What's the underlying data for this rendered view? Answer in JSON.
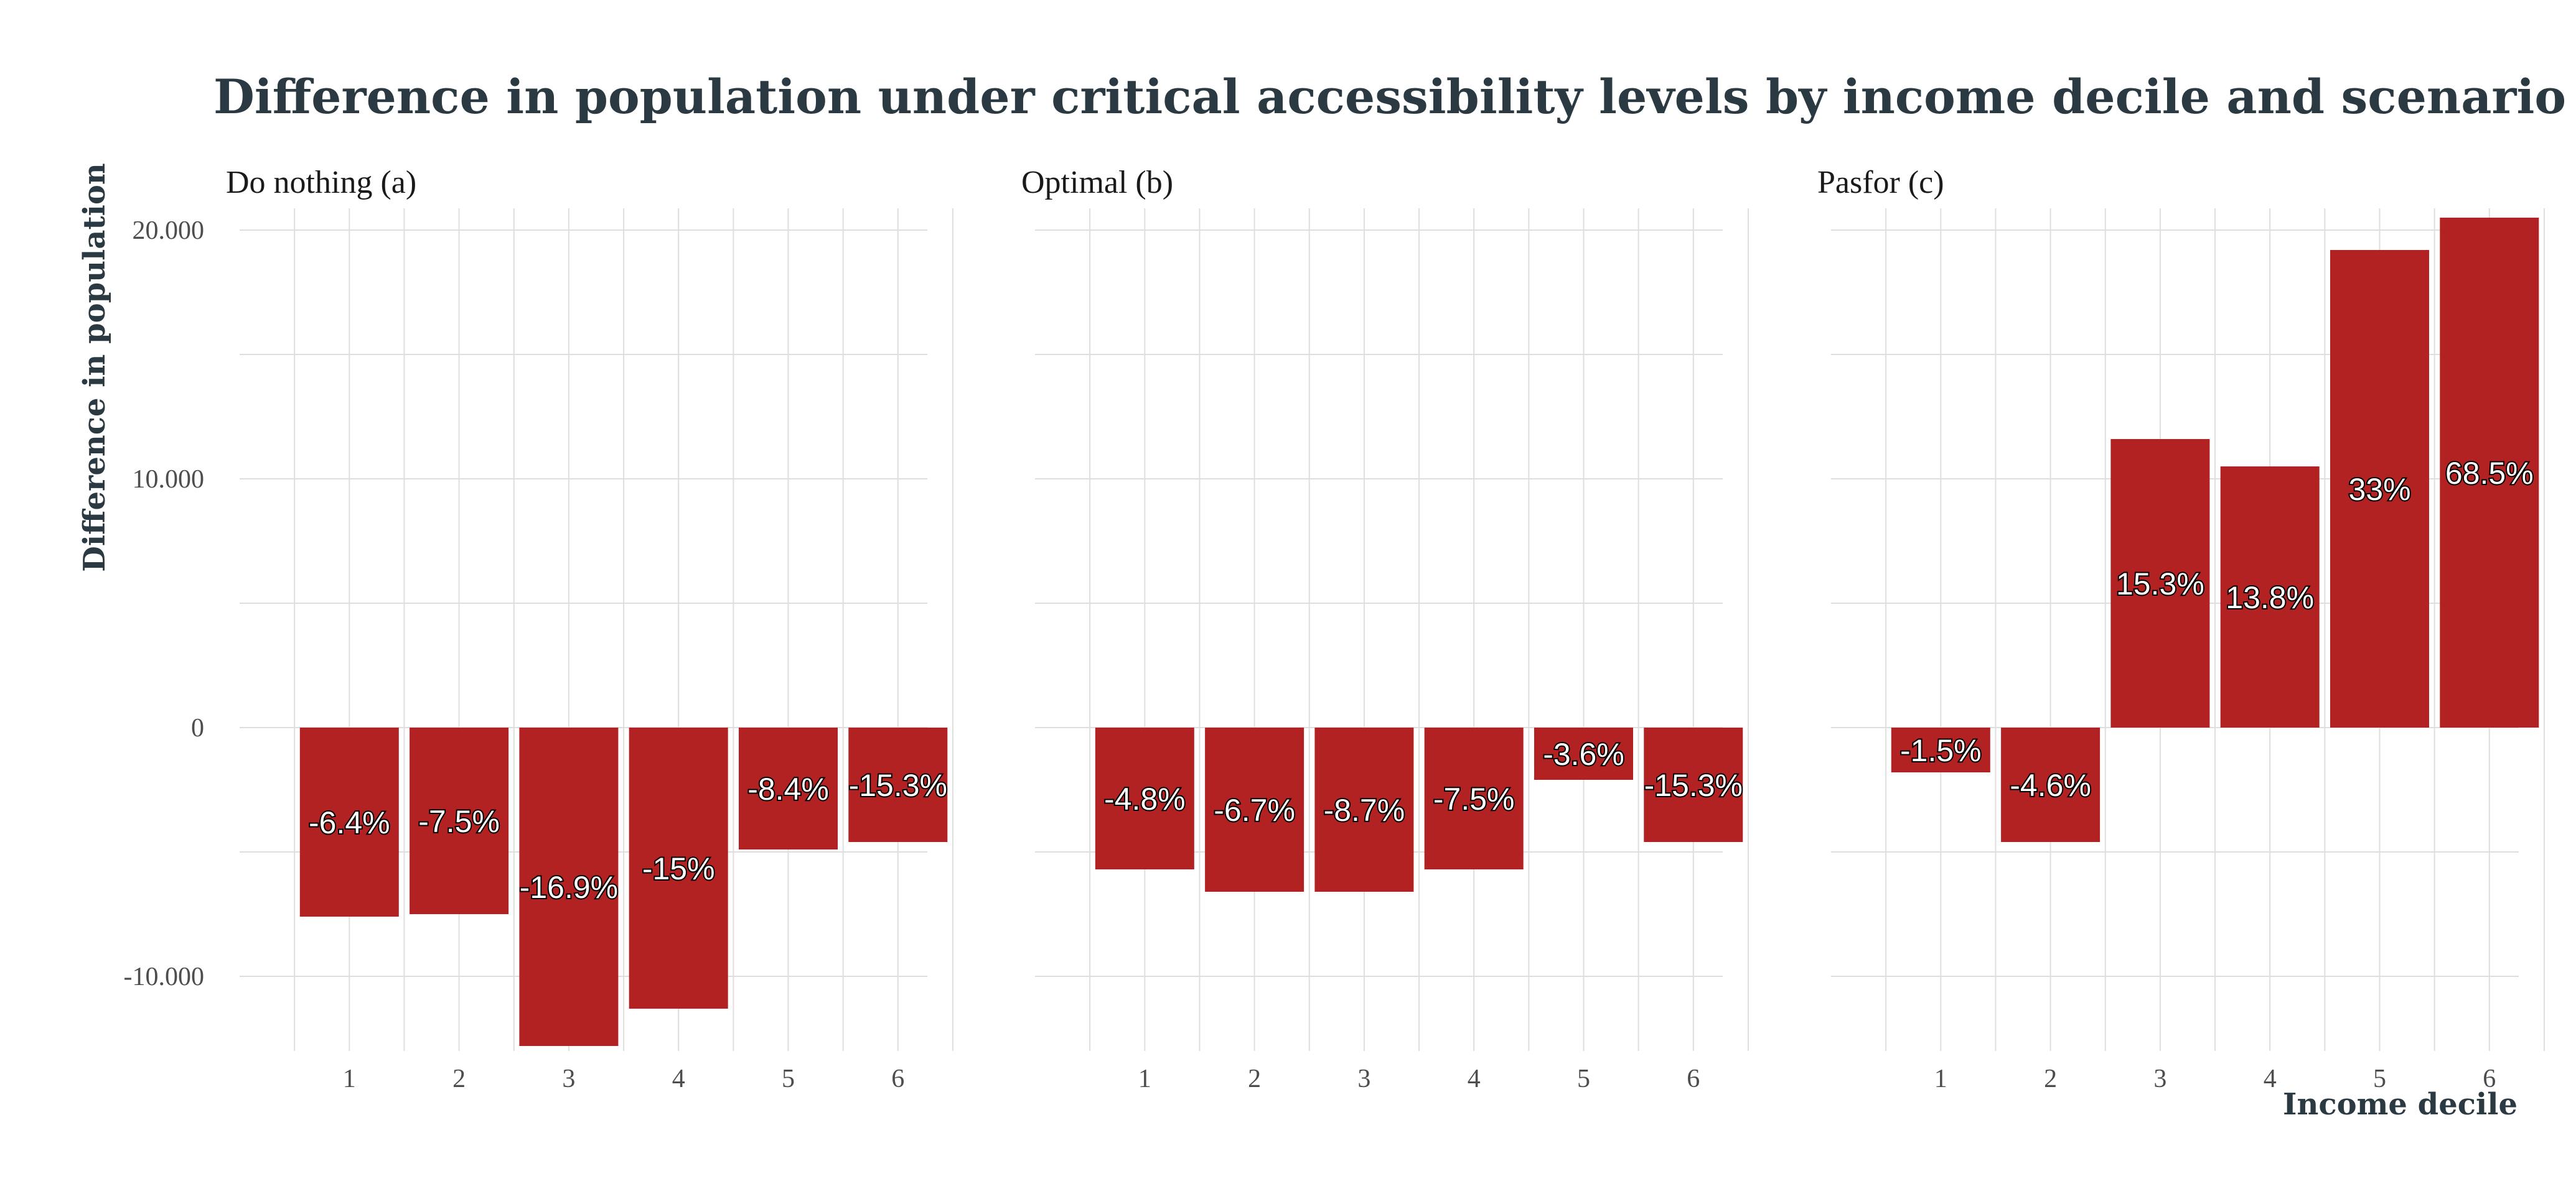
{
  "chart_data": {
    "type": "bar",
    "title": "Difference in population under critical accessibility levels by income decile and scenario",
    "xlabel": "Income decile",
    "ylabel": "Difference in population",
    "ylim": [
      -13000,
      20500
    ],
    "y_ticks": [
      -10000,
      0,
      10000,
      20000
    ],
    "y_tick_labels": [
      "-10.000",
      "0",
      "10.000",
      "20.000"
    ],
    "grid": true,
    "categories": [
      "1",
      "2",
      "3",
      "4",
      "5",
      "6"
    ],
    "facets": [
      {
        "name": "Do nothing (a)",
        "values": [
          -7600,
          -7500,
          -12800,
          -11300,
          -4900,
          -4600
        ],
        "labels": [
          "-6.4%",
          "-7.5%",
          "-16.9%",
          "-15%",
          "-8.4%",
          "-15.3%"
        ]
      },
      {
        "name": "Optimal (b)",
        "values": [
          -5700,
          -6600,
          -6600,
          -5700,
          -2100,
          -4600
        ],
        "labels": [
          "-4.8%",
          "-6.7%",
          "-8.7%",
          "-7.5%",
          "-3.6%",
          "-15.3%"
        ]
      },
      {
        "name": "Pasfor (c)",
        "values": [
          -1800,
          -4600,
          11600,
          10500,
          19200,
          20500
        ],
        "labels": [
          "-1.5%",
          "-4.6%",
          "15.3%",
          "13.8%",
          "33%",
          "68.5%"
        ]
      }
    ],
    "colors": {
      "bar": "#b22222",
      "grid": "#dedede",
      "title": "#2b3a42"
    }
  }
}
